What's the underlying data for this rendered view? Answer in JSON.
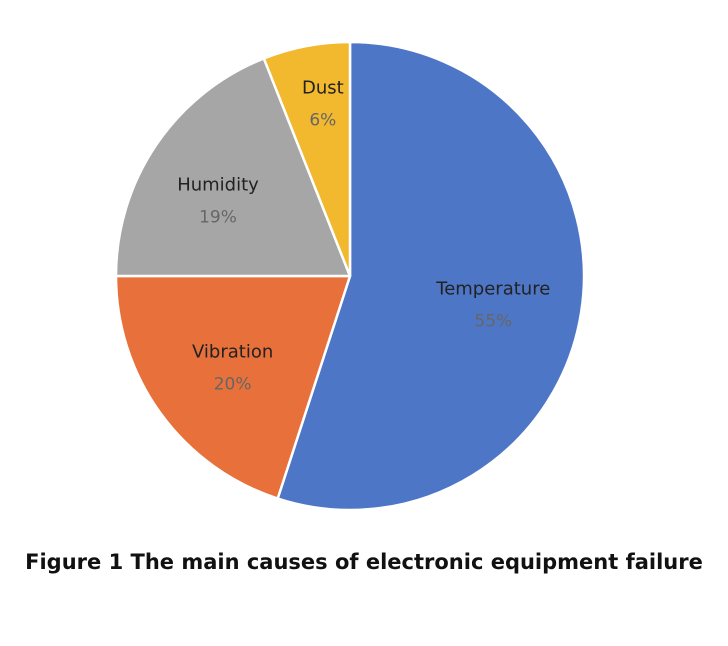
{
  "chart_data": {
    "type": "pie",
    "title": "",
    "categories": [
      "Temperature",
      "Vibration",
      "Humidity",
      "Dust"
    ],
    "values": [
      55,
      20,
      19,
      6
    ],
    "value_labels": [
      "55%",
      "20%",
      "19%",
      "6%"
    ],
    "colors": [
      "#4e76c6",
      "#e8703a",
      "#a6a6a6",
      "#f2b82e"
    ],
    "start_angle_deg": 0,
    "direction": "clockwise",
    "legend": "none",
    "labels_inside": true
  },
  "caption": "Figure 1 The main causes of electronic equipment failure"
}
